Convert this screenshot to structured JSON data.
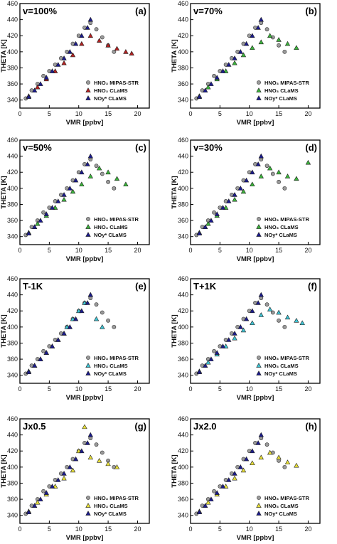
{
  "figure": {
    "xlabel": "VMR [ppbv]",
    "ylabel": "THETA [K]",
    "legend_entries": [
      "HNO₃ MIPAS-STR",
      "HNO₃ CLaMS",
      "NOᵧ* CLaMS"
    ],
    "legend_labels": [
      "HNO₃ MIPAS-STR",
      "HNO₃ CLaMS",
      "NOy* CLaMS"
    ]
  },
  "chart_data": [
    {
      "type": "scatter",
      "panel": "(a)",
      "scenario": "v=100%",
      "xlim": [
        0,
        22
      ],
      "ylim": [
        330,
        460
      ],
      "xticks": [
        0,
        5,
        10,
        15,
        20
      ],
      "yticks": [
        340,
        360,
        380,
        400,
        420,
        440,
        460
      ],
      "xlabel": "VMR [ppbv]",
      "ylabel": "THETA [K]",
      "legend_position": "bottom-right",
      "show_legend": true,
      "series": [
        {
          "name": "HNO3 MIPAS-STR",
          "marker": "circle",
          "color": "#9a9a9a",
          "x": [
            1,
            2,
            3,
            4,
            5,
            6,
            7,
            8,
            9,
            10,
            11,
            12,
            13,
            14,
            15,
            16
          ],
          "y": [
            342,
            352,
            360,
            370,
            376,
            384,
            392,
            400,
            410,
            420,
            430,
            436,
            428,
            418,
            408,
            400
          ]
        },
        {
          "name": "HNO3 CLaMS",
          "marker": "triangle",
          "color": "#b22222",
          "x": [
            1.5,
            3,
            4.5,
            6,
            7.5,
            9,
            10.5,
            12,
            13.5,
            15,
            16.5,
            18,
            19
          ],
          "y": [
            345,
            356,
            366,
            376,
            386,
            396,
            410,
            420,
            414,
            408,
            404,
            400,
            398
          ]
        },
        {
          "name": "NOy* CLaMS",
          "marker": "triangle",
          "color": "#1a1a8c",
          "x": [
            1.5,
            2.5,
            3.5,
            4.5,
            5.5,
            6.5,
            7.5,
            8.5,
            9.5,
            10.5,
            11.5,
            12
          ],
          "y": [
            344,
            352,
            360,
            368,
            376,
            384,
            392,
            400,
            410,
            420,
            430,
            440
          ]
        }
      ]
    },
    {
      "type": "scatter",
      "panel": "(b)",
      "scenario": "v=70%",
      "xlim": [
        0,
        22
      ],
      "ylim": [
        330,
        460
      ],
      "xticks": [
        0,
        5,
        10,
        15,
        20
      ],
      "yticks": [
        340,
        360,
        380,
        400,
        420,
        440,
        460
      ],
      "xlabel": "VMR [ppbv]",
      "ylabel": "THETA [K]",
      "legend_position": "bottom-right",
      "show_legend": true,
      "series": [
        {
          "name": "HNO3 MIPAS-STR",
          "marker": "circle",
          "color": "#9a9a9a",
          "x": [
            1,
            2,
            3,
            4,
            5,
            6,
            7,
            8,
            9,
            10,
            11,
            12,
            13,
            14,
            15,
            16
          ],
          "y": [
            342,
            352,
            360,
            370,
            376,
            384,
            392,
            400,
            410,
            420,
            430,
            436,
            428,
            418,
            408,
            400
          ]
        },
        {
          "name": "HNO3 CLaMS",
          "marker": "triangle",
          "color": "#3cb43c",
          "x": [
            1.5,
            3,
            4.5,
            6,
            7.5,
            9,
            10.5,
            12,
            13.5,
            15,
            16.5,
            18
          ],
          "y": [
            345,
            356,
            366,
            376,
            386,
            396,
            405,
            412,
            420,
            415,
            410,
            405
          ]
        },
        {
          "name": "NOy* CLaMS",
          "marker": "triangle",
          "color": "#1a1a8c",
          "x": [
            1.5,
            2.5,
            3.5,
            4.5,
            5.5,
            6.5,
            7.5,
            8.5,
            9.5,
            10.5,
            11.5,
            12
          ],
          "y": [
            344,
            352,
            360,
            368,
            376,
            384,
            392,
            400,
            410,
            420,
            430,
            440
          ]
        }
      ]
    },
    {
      "type": "scatter",
      "panel": "(c)",
      "scenario": "v=50%",
      "xlim": [
        0,
        22
      ],
      "ylim": [
        330,
        460
      ],
      "xticks": [
        0,
        5,
        10,
        15,
        20
      ],
      "yticks": [
        340,
        360,
        380,
        400,
        420,
        440,
        460
      ],
      "xlabel": "VMR [ppbv]",
      "ylabel": "THETA [K]",
      "legend_position": "bottom-right",
      "show_legend": true,
      "series": [
        {
          "name": "HNO3 MIPAS-STR",
          "marker": "circle",
          "color": "#9a9a9a",
          "x": [
            1,
            2,
            3,
            4,
            5,
            6,
            7,
            8,
            9,
            10,
            11,
            12,
            13,
            14,
            15,
            16
          ],
          "y": [
            342,
            352,
            360,
            370,
            376,
            384,
            392,
            400,
            410,
            420,
            430,
            436,
            428,
            418,
            408,
            400
          ]
        },
        {
          "name": "HNO3 CLaMS",
          "marker": "triangle",
          "color": "#3cb43c",
          "x": [
            1.5,
            3,
            4.5,
            6,
            7.5,
            9,
            10.5,
            12,
            13.5,
            15,
            16.5,
            18
          ],
          "y": [
            345,
            356,
            366,
            376,
            386,
            396,
            405,
            415,
            425,
            420,
            412,
            405
          ]
        },
        {
          "name": "NOy* CLaMS",
          "marker": "triangle",
          "color": "#1a1a8c",
          "x": [
            1.5,
            2.5,
            3.5,
            4.5,
            5.5,
            6.5,
            7.5,
            8.5,
            9.5,
            10.5,
            11.5,
            12
          ],
          "y": [
            344,
            352,
            360,
            368,
            376,
            384,
            392,
            400,
            410,
            420,
            430,
            440
          ]
        }
      ]
    },
    {
      "type": "scatter",
      "panel": "(d)",
      "scenario": "v=30%",
      "xlim": [
        0,
        22
      ],
      "ylim": [
        330,
        460
      ],
      "xticks": [
        0,
        5,
        10,
        15,
        20
      ],
      "yticks": [
        340,
        360,
        380,
        400,
        420,
        440,
        460
      ],
      "xlabel": "VMR [ppbv]",
      "ylabel": "THETA [K]",
      "legend_position": "bottom-right",
      "show_legend": true,
      "series": [
        {
          "name": "HNO3 MIPAS-STR",
          "marker": "circle",
          "color": "#9a9a9a",
          "x": [
            1,
            2,
            3,
            4,
            5,
            6,
            7,
            8,
            9,
            10,
            11,
            12,
            13,
            14,
            15,
            16
          ],
          "y": [
            342,
            352,
            360,
            370,
            376,
            384,
            392,
            400,
            410,
            420,
            430,
            436,
            428,
            418,
            408,
            400
          ]
        },
        {
          "name": "HNO3 CLaMS",
          "marker": "triangle",
          "color": "#3cb43c",
          "x": [
            1.5,
            3,
            4.5,
            6,
            7.5,
            9,
            10.5,
            12,
            13.5,
            15,
            16.5,
            18,
            20
          ],
          "y": [
            345,
            356,
            366,
            376,
            386,
            396,
            405,
            415,
            425,
            420,
            415,
            412,
            432
          ]
        },
        {
          "name": "NOy* CLaMS",
          "marker": "triangle",
          "color": "#1a1a8c",
          "x": [
            1.5,
            2.5,
            3.5,
            4.5,
            5.5,
            6.5,
            7.5,
            8.5,
            9.5,
            10.5,
            11.5,
            12
          ],
          "y": [
            344,
            352,
            360,
            368,
            376,
            384,
            392,
            400,
            410,
            420,
            430,
            440
          ]
        }
      ]
    },
    {
      "type": "scatter",
      "panel": "(e)",
      "scenario": "T-1K",
      "xlim": [
        0,
        22
      ],
      "ylim": [
        330,
        460
      ],
      "xticks": [
        0,
        5,
        10,
        15,
        20
      ],
      "yticks": [
        340,
        360,
        380,
        400,
        420,
        440,
        460
      ],
      "xlabel": "VMR [ppbv]",
      "ylabel": "THETA [K]",
      "legend_position": "bottom-right",
      "show_legend": true,
      "series": [
        {
          "name": "HNO3 MIPAS-STR",
          "marker": "circle",
          "color": "#9a9a9a",
          "x": [
            1,
            2,
            3,
            4,
            5,
            6,
            7,
            8,
            9,
            10,
            11,
            12,
            13,
            14,
            15,
            16
          ],
          "y": [
            342,
            352,
            360,
            370,
            376,
            384,
            392,
            400,
            410,
            420,
            430,
            436,
            428,
            418,
            408,
            400
          ]
        },
        {
          "name": "HNO3 CLaMS",
          "marker": "triangle",
          "color": "#3fc4d4",
          "x": [
            1.5,
            2.5,
            3.5,
            4.5,
            5.5,
            6.5,
            7.5,
            8,
            9,
            10,
            11,
            12,
            13,
            14
          ],
          "y": [
            345,
            352,
            360,
            368,
            376,
            384,
            392,
            400,
            410,
            420,
            430,
            440,
            410,
            400
          ]
        },
        {
          "name": "NOy* CLaMS",
          "marker": "triangle",
          "color": "#1a1a8c",
          "x": [
            1.5,
            2.5,
            3.5,
            4.5,
            5.5,
            6.5,
            7.5,
            8.5,
            9.5,
            10.5,
            11.5,
            12
          ],
          "y": [
            344,
            352,
            360,
            368,
            376,
            384,
            392,
            400,
            410,
            420,
            430,
            440
          ]
        }
      ]
    },
    {
      "type": "scatter",
      "panel": "(f)",
      "scenario": "T+1K",
      "xlim": [
        0,
        22
      ],
      "ylim": [
        330,
        460
      ],
      "xticks": [
        0,
        5,
        10,
        15,
        20
      ],
      "yticks": [
        340,
        360,
        380,
        400,
        420,
        440,
        460
      ],
      "xlabel": "VMR [ppbv]",
      "ylabel": "THETA [K]",
      "legend_position": "bottom-right",
      "show_legend": true,
      "series": [
        {
          "name": "HNO3 MIPAS-STR",
          "marker": "circle",
          "color": "#9a9a9a",
          "x": [
            1,
            2,
            3,
            4,
            5,
            6,
            7,
            8,
            9,
            10,
            11,
            12,
            13,
            14,
            15,
            16
          ],
          "y": [
            342,
            352,
            360,
            370,
            376,
            384,
            392,
            400,
            410,
            420,
            430,
            436,
            428,
            418,
            408,
            400
          ]
        },
        {
          "name": "HNO3 CLaMS",
          "marker": "triangle",
          "color": "#3fc4d4",
          "x": [
            1.5,
            3,
            4.5,
            6,
            7.5,
            9,
            10.5,
            12,
            13.5,
            15,
            16.5,
            18,
            19
          ],
          "y": [
            345,
            356,
            366,
            376,
            386,
            396,
            405,
            415,
            422,
            418,
            412,
            408,
            405
          ]
        },
        {
          "name": "NOy* CLaMS",
          "marker": "triangle",
          "color": "#1a1a8c",
          "x": [
            1.5,
            2.5,
            3.5,
            4.5,
            5.5,
            6.5,
            7.5,
            8.5,
            9.5,
            10.5,
            11.5,
            12
          ],
          "y": [
            344,
            352,
            360,
            368,
            376,
            384,
            392,
            400,
            410,
            420,
            430,
            440
          ]
        }
      ]
    },
    {
      "type": "scatter",
      "panel": "(g)",
      "scenario": "Jx0.5",
      "xlim": [
        0,
        22
      ],
      "ylim": [
        330,
        460
      ],
      "xticks": [
        0,
        5,
        10,
        15,
        20
      ],
      "yticks": [
        340,
        360,
        380,
        400,
        420,
        440,
        460
      ],
      "xlabel": "VMR [ppbv]",
      "ylabel": "THETA [K]",
      "legend_position": "bottom-right",
      "show_legend": true,
      "series": [
        {
          "name": "HNO3 MIPAS-STR",
          "marker": "circle",
          "color": "#9a9a9a",
          "x": [
            1,
            2,
            3,
            4,
            5,
            6,
            7,
            8,
            9,
            10,
            11,
            12,
            13,
            14,
            15,
            16
          ],
          "y": [
            342,
            352,
            360,
            370,
            376,
            384,
            392,
            400,
            410,
            420,
            430,
            436,
            428,
            418,
            408,
            400
          ]
        },
        {
          "name": "HNO3 CLaMS",
          "marker": "triangle",
          "color": "#e8e03a",
          "x": [
            1.5,
            3,
            4.5,
            6,
            7.5,
            9,
            10,
            11,
            12,
            13.5,
            15,
            16.5
          ],
          "y": [
            345,
            356,
            366,
            376,
            386,
            396,
            420,
            450,
            412,
            408,
            404,
            400
          ]
        },
        {
          "name": "NOy* CLaMS",
          "marker": "triangle",
          "color": "#1a1a8c",
          "x": [
            1.5,
            2.5,
            3.5,
            4.5,
            5.5,
            6.5,
            7.5,
            8.5,
            9.5,
            10.5,
            11.5,
            12
          ],
          "y": [
            344,
            352,
            360,
            368,
            376,
            384,
            392,
            400,
            410,
            420,
            430,
            440
          ]
        }
      ]
    },
    {
      "type": "scatter",
      "panel": "(h)",
      "scenario": "Jx2.0",
      "xlim": [
        0,
        22
      ],
      "ylim": [
        330,
        460
      ],
      "xticks": [
        0,
        5,
        10,
        15,
        20
      ],
      "yticks": [
        340,
        360,
        380,
        400,
        420,
        440,
        460
      ],
      "xlabel": "VMR [ppbv]",
      "ylabel": "THETA [K]",
      "legend_position": "bottom-right",
      "show_legend": true,
      "series": [
        {
          "name": "HNO3 MIPAS-STR",
          "marker": "circle",
          "color": "#9a9a9a",
          "x": [
            1,
            2,
            3,
            4,
            5,
            6,
            7,
            8,
            9,
            10,
            11,
            12,
            13,
            14,
            15,
            16
          ],
          "y": [
            342,
            352,
            360,
            370,
            376,
            384,
            392,
            400,
            410,
            420,
            430,
            436,
            428,
            418,
            408,
            400
          ]
        },
        {
          "name": "HNO3 CLaMS",
          "marker": "triangle",
          "color": "#e8e03a",
          "x": [
            1.5,
            3,
            4.5,
            6,
            7.5,
            9,
            10.5,
            12,
            13.5,
            15,
            16.5,
            18
          ],
          "y": [
            345,
            356,
            366,
            376,
            386,
            396,
            405,
            412,
            418,
            412,
            406,
            402
          ]
        },
        {
          "name": "NOy* CLaMS",
          "marker": "triangle",
          "color": "#1a1a8c",
          "x": [
            1.5,
            2.5,
            3.5,
            4.5,
            5.5,
            6.5,
            7.5,
            8.5,
            9.5,
            10.5,
            11.5,
            12
          ],
          "y": [
            344,
            352,
            360,
            368,
            376,
            384,
            392,
            400,
            410,
            420,
            430,
            440
          ]
        }
      ]
    }
  ]
}
